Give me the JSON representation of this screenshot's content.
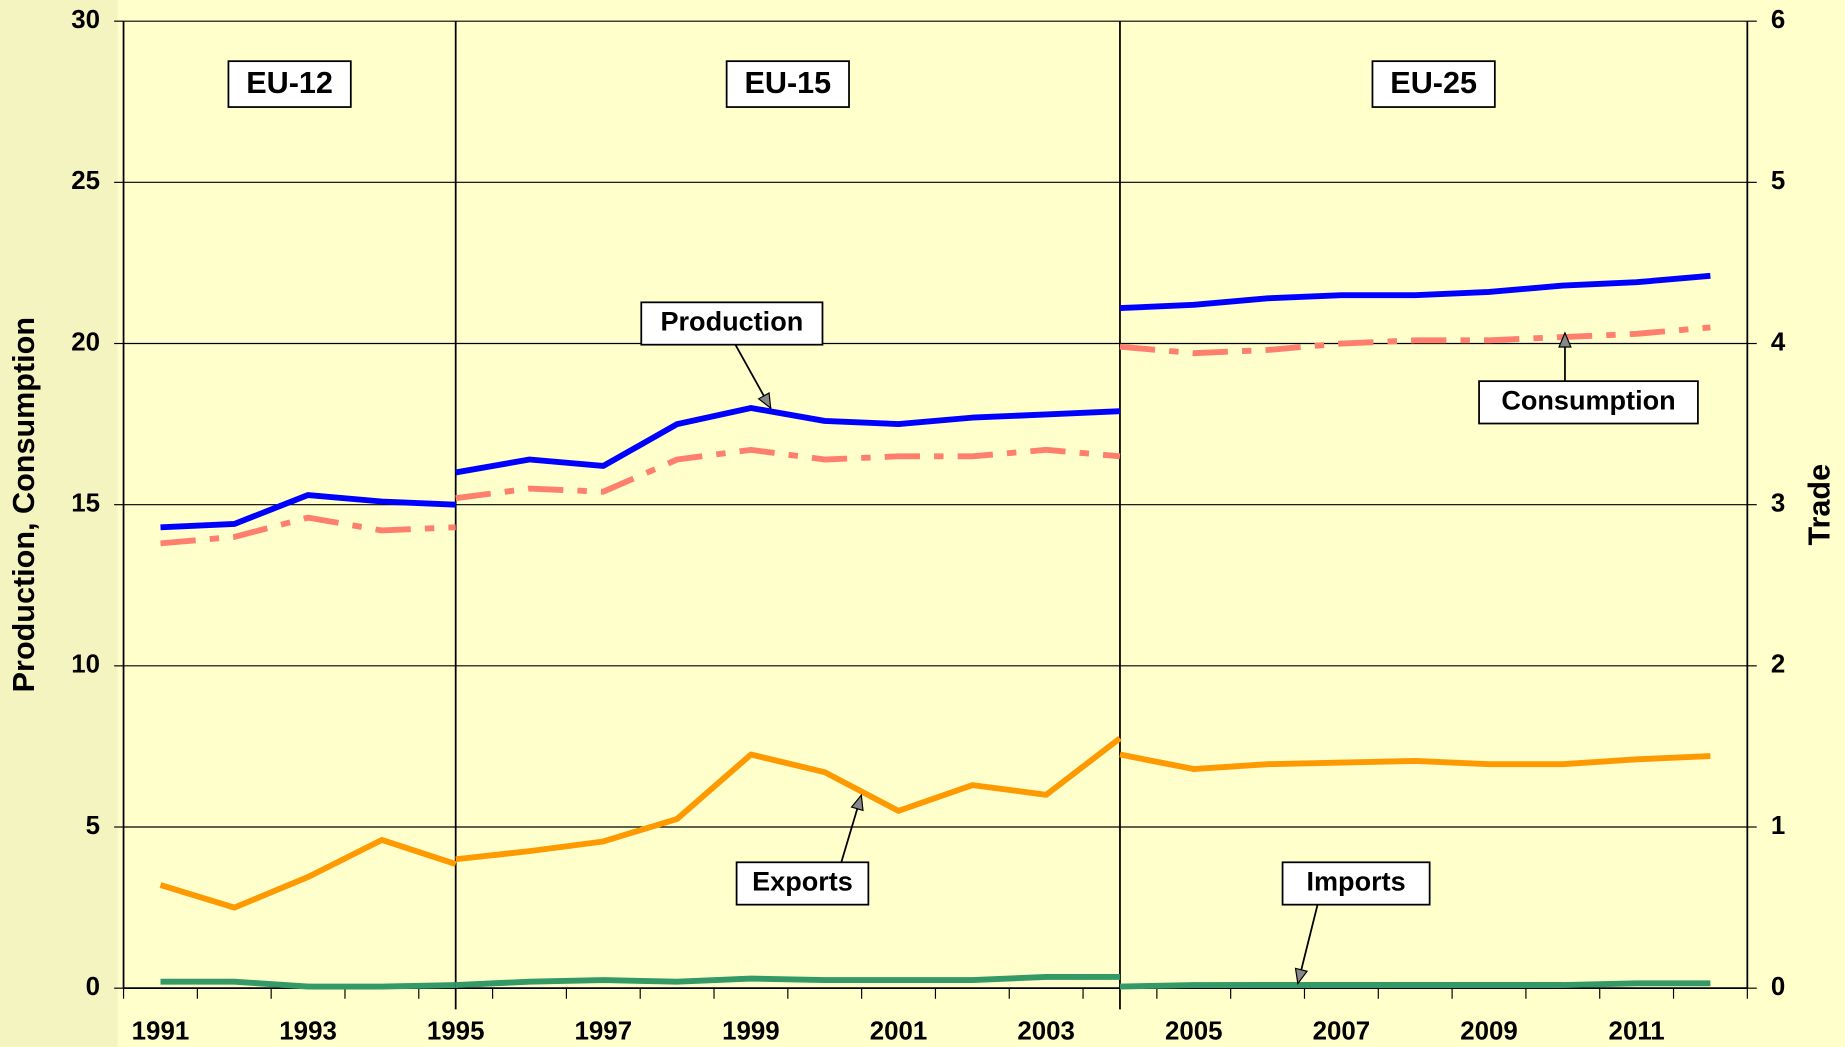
{
  "chart_data": {
    "type": "line",
    "categories": [
      "1991",
      null,
      "1993",
      null,
      "1995",
      null,
      "1997",
      null,
      "1999",
      null,
      "2001",
      null,
      "2003",
      null,
      "2005",
      null,
      "2007",
      null,
      "2009",
      null,
      "2011",
      null
    ],
    "regions": [
      "EU-12",
      "EU-15",
      "EU-25"
    ],
    "ylabel": "Production, Consumption",
    "y2label": "Trade",
    "ylim": [
      0,
      30
    ],
    "yticks": [
      0,
      5,
      10,
      15,
      20,
      25,
      30
    ],
    "y2lim": [
      0,
      6
    ],
    "y2ticks": [
      0,
      1,
      2,
      3,
      4,
      5,
      6
    ],
    "grid": true,
    "series": [
      {
        "name": "Production",
        "color": "#0000ff",
        "axis": "y",
        "dashed": false,
        "segments": [
          [
            14.3,
            14.4,
            15.3,
            15.1,
            15.0,
            null,
            null,
            null,
            null,
            null,
            null,
            null,
            null,
            null,
            null,
            null,
            null,
            null,
            null,
            null,
            null,
            null
          ],
          [
            null,
            null,
            null,
            null,
            16.0,
            16.4,
            16.2,
            17.5,
            18.0,
            17.6,
            17.5,
            17.7,
            17.8,
            17.9,
            null,
            null,
            null,
            null,
            null,
            null,
            null,
            null
          ],
          [
            null,
            null,
            null,
            null,
            null,
            null,
            null,
            null,
            null,
            null,
            null,
            null,
            null,
            21.1,
            21.2,
            21.4,
            21.5,
            21.5,
            21.6,
            21.8,
            21.9,
            22.1
          ]
        ]
      },
      {
        "name": "Consumption",
        "color": "#ff7f6e",
        "axis": "y",
        "dashed": true,
        "segments": [
          [
            13.8,
            14.0,
            14.6,
            14.2,
            14.3,
            null,
            null,
            null,
            null,
            null,
            null,
            null,
            null,
            null,
            null,
            null,
            null,
            null,
            null,
            null,
            null,
            null
          ],
          [
            null,
            null,
            null,
            null,
            15.2,
            15.5,
            15.4,
            16.4,
            16.7,
            16.4,
            16.5,
            16.5,
            16.7,
            16.5,
            null,
            null,
            null,
            null,
            null,
            null,
            null,
            null
          ],
          [
            null,
            null,
            null,
            null,
            null,
            null,
            null,
            null,
            null,
            null,
            null,
            null,
            null,
            19.9,
            19.7,
            19.8,
            20.0,
            20.1,
            20.1,
            20.2,
            20.3,
            20.5
          ]
        ]
      },
      {
        "name": "Exports",
        "color": "#ff9900",
        "axis": "y2",
        "dashed": false,
        "segments": [
          [
            0.64,
            0.5,
            0.69,
            0.92,
            0.77,
            null,
            null,
            null,
            null,
            null,
            null,
            null,
            null,
            null,
            null,
            null,
            null,
            null,
            null,
            null,
            null,
            null
          ],
          [
            null,
            null,
            null,
            null,
            0.8,
            0.85,
            0.91,
            1.05,
            1.45,
            1.34,
            1.1,
            1.26,
            1.2,
            1.55,
            null,
            null,
            null,
            null,
            null,
            null,
            null,
            null
          ],
          [
            null,
            null,
            null,
            null,
            null,
            null,
            null,
            null,
            null,
            null,
            null,
            null,
            null,
            1.45,
            1.36,
            1.39,
            1.4,
            1.41,
            1.39,
            1.39,
            1.42,
            1.44
          ]
        ]
      },
      {
        "name": "Imports",
        "color": "#339966",
        "axis": "y2",
        "dashed": false,
        "segments": [
          [
            0.04,
            0.04,
            0.01,
            0.01,
            0.02,
            null,
            null,
            null,
            null,
            null,
            null,
            null,
            null,
            null,
            null,
            null,
            null,
            null,
            null,
            null,
            null,
            null
          ],
          [
            null,
            null,
            null,
            null,
            0.02,
            0.04,
            0.05,
            0.04,
            0.06,
            0.05,
            0.05,
            0.05,
            0.07,
            0.07,
            null,
            null,
            null,
            null,
            null,
            null,
            null,
            null
          ],
          [
            null,
            null,
            null,
            null,
            null,
            null,
            null,
            null,
            null,
            null,
            null,
            null,
            null,
            0.01,
            0.02,
            0.02,
            0.02,
            0.02,
            0.02,
            0.02,
            0.03,
            0.03
          ]
        ]
      }
    ]
  }
}
